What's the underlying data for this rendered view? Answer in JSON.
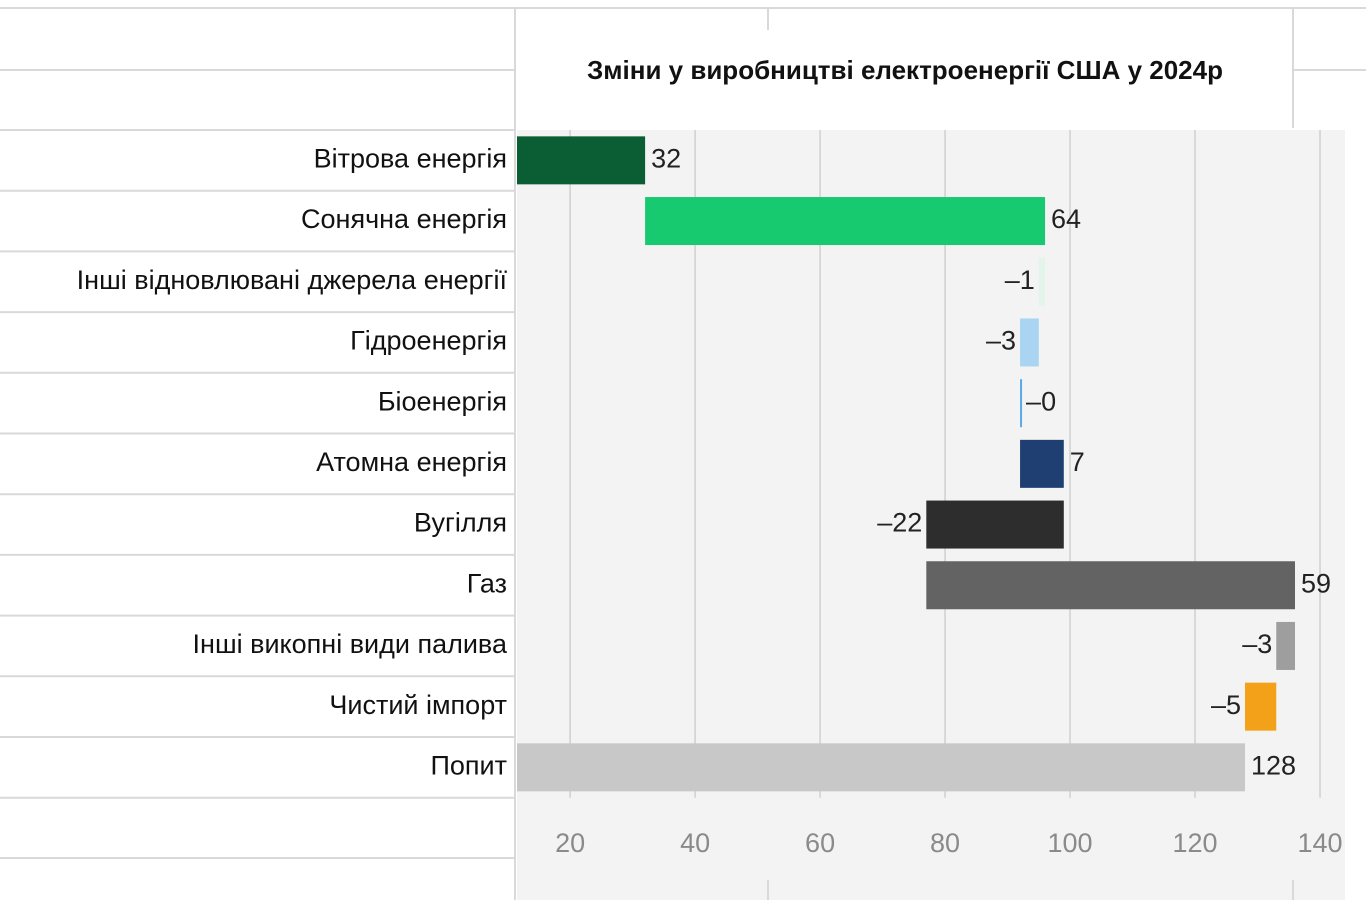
{
  "chart_data": {
    "type": "waterfall",
    "title": "Зміни у виробництві електроенергії США у 2024р",
    "categories": [
      "Вітрова енергія",
      "Сонячна енергія",
      "Інші відновлювані джерела енергії",
      "Гідроенергія",
      "Біоенергія",
      "Атомна енергія",
      "Вугілля",
      "Газ",
      "Інші викопні види палива",
      "Чистий імпорт",
      "Попит"
    ],
    "values": [
      32,
      64,
      -1,
      -3,
      0,
      7,
      -22,
      59,
      -3,
      -5,
      128
    ],
    "value_labels": [
      "32",
      "64",
      "–1",
      "–3",
      "–0",
      "7",
      "–22",
      "59",
      "–3",
      "–5",
      "128"
    ],
    "colors": [
      "#0b5e34",
      "#17c96f",
      "#e3f4ea",
      "#a9d5f2",
      "#5aa9e6",
      "#1f3f73",
      "#2d2d2d",
      "#636363",
      "#9e9e9e",
      "#f4a11a",
      "#c8c8c8"
    ],
    "totals": [
      "Попит"
    ],
    "xlim": [
      11.5,
      144
    ],
    "xticks": [
      20,
      40,
      60,
      80,
      100,
      120,
      140
    ],
    "grid": true
  }
}
